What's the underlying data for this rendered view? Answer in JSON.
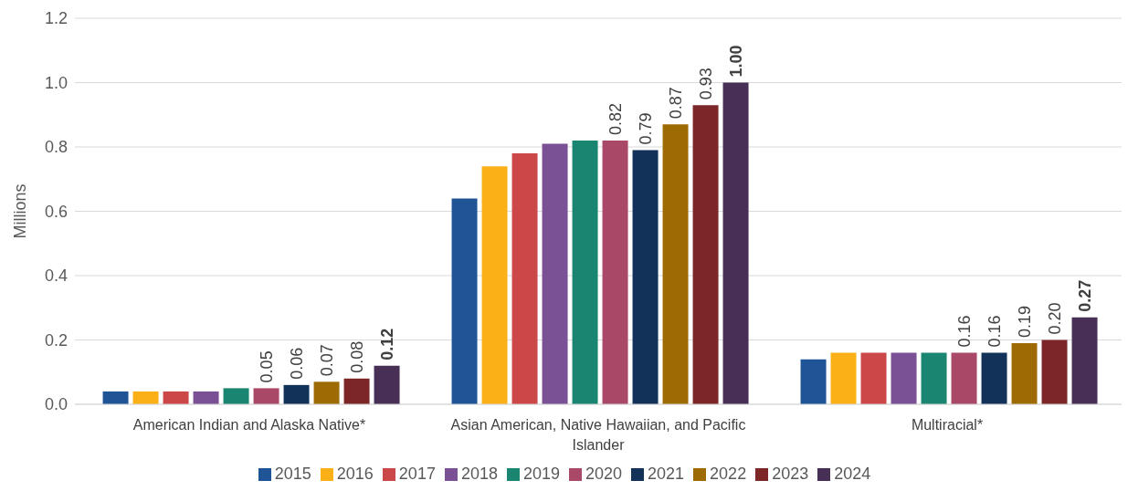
{
  "chart_data": {
    "type": "bar",
    "ylabel": "Millions",
    "categories": [
      "American Indian and Alaska Native*",
      "Asian American, Native Hawaiian, and Pacific Islander",
      "Multiracial*"
    ],
    "series": [
      {
        "name": "2015",
        "color": "#1f5597",
        "values": [
          0.04,
          0.64,
          0.14
        ]
      },
      {
        "name": "2016",
        "color": "#fbb017",
        "values": [
          0.04,
          0.74,
          0.16
        ]
      },
      {
        "name": "2017",
        "color": "#cc4748",
        "values": [
          0.04,
          0.78,
          0.16
        ]
      },
      {
        "name": "2018",
        "color": "#7a5195",
        "values": [
          0.04,
          0.81,
          0.16
        ]
      },
      {
        "name": "2019",
        "color": "#1a8570",
        "values": [
          0.05,
          0.82,
          0.16
        ]
      },
      {
        "name": "2020",
        "color": "#aa4868",
        "values": [
          0.05,
          0.82,
          0.16
        ],
        "value_labels": [
          "0.05",
          "0.82",
          "0.16"
        ]
      },
      {
        "name": "2021",
        "color": "#12325a",
        "values": [
          0.06,
          0.79,
          0.16
        ],
        "value_labels": [
          "0.06",
          "0.79",
          "0.16"
        ]
      },
      {
        "name": "2022",
        "color": "#9e6a03",
        "values": [
          0.07,
          0.87,
          0.19
        ],
        "value_labels": [
          "0.07",
          "0.87",
          "0.19"
        ]
      },
      {
        "name": "2023",
        "color": "#7d2628",
        "values": [
          0.08,
          0.93,
          0.2
        ],
        "value_labels": [
          "0.08",
          "0.93",
          "0.20"
        ]
      },
      {
        "name": "2024",
        "color": "#472f55",
        "values": [
          0.12,
          1.0,
          0.27
        ],
        "value_labels": [
          "0.12",
          "1.00",
          "0.27"
        ]
      }
    ],
    "ylim": [
      0,
      1.2
    ],
    "yticks": [
      {
        "value": 0,
        "label": "0.0"
      },
      {
        "value": 0.2,
        "label": "0.2"
      },
      {
        "value": 0.4,
        "label": "0.4"
      },
      {
        "value": 0.6,
        "label": "0.6"
      },
      {
        "value": 0.8,
        "label": "0.8"
      },
      {
        "value": 1,
        "label": "1.0"
      },
      {
        "value": 1.2,
        "label": "1.2"
      }
    ],
    "grid": "y",
    "legend": "bottom"
  }
}
